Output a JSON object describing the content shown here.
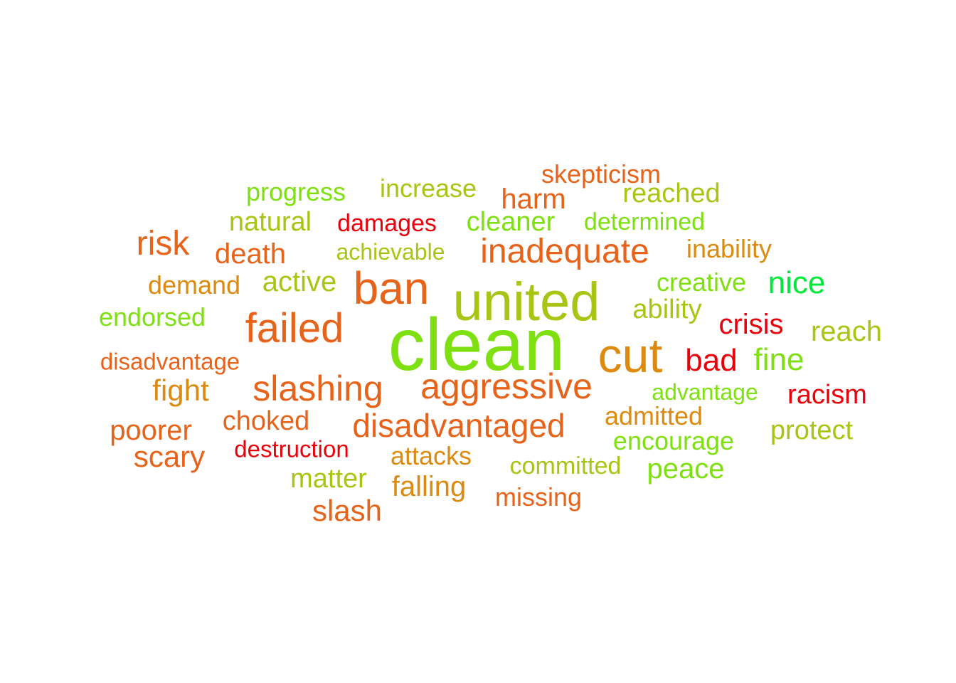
{
  "palette": {
    "red": "#e8000b",
    "red_orange": "#e53d12",
    "orange": "#e8631a",
    "dark_orange": "#dc8a10",
    "olive": "#aac414",
    "yellow_green": "#98c80e",
    "lime": "#7ee010",
    "green": "#00e83a"
  },
  "words": [
    {
      "text": "clean",
      "color": "#7ee010"
    },
    {
      "text": "united",
      "color": "#aac414"
    },
    {
      "text": "ban",
      "color": "#e8631a"
    },
    {
      "text": "cut",
      "color": "#dc8a10"
    },
    {
      "text": "failed",
      "color": "#e8631a"
    },
    {
      "text": "slashing",
      "color": "#e8631a"
    },
    {
      "text": "aggressive",
      "color": "#e8631a"
    },
    {
      "text": "inadequate",
      "color": "#e8631a"
    },
    {
      "text": "disadvantaged",
      "color": "#e8631a"
    },
    {
      "text": "risk",
      "color": "#e8631a"
    },
    {
      "text": "death",
      "color": "#e8631a"
    },
    {
      "text": "harm",
      "color": "#e8631a"
    },
    {
      "text": "nice",
      "color": "#00e83a"
    },
    {
      "text": "crisis",
      "color": "#e8000b"
    },
    {
      "text": "bad",
      "color": "#e8000b"
    },
    {
      "text": "fine",
      "color": "#7ee010"
    },
    {
      "text": "reach",
      "color": "#aac414"
    },
    {
      "text": "racism",
      "color": "#e8000b"
    },
    {
      "text": "fight",
      "color": "#dc8a10"
    },
    {
      "text": "poorer",
      "color": "#e8631a"
    },
    {
      "text": "scary",
      "color": "#e8631a"
    },
    {
      "text": "choked",
      "color": "#e8631a"
    },
    {
      "text": "slash",
      "color": "#e8631a"
    },
    {
      "text": "peace",
      "color": "#7ee010"
    },
    {
      "text": "protect",
      "color": "#aac414"
    },
    {
      "text": "matter",
      "color": "#aac414"
    },
    {
      "text": "falling",
      "color": "#dc8a10"
    },
    {
      "text": "missing",
      "color": "#e8631a"
    },
    {
      "text": "attacks",
      "color": "#dc8a10"
    },
    {
      "text": "admitted",
      "color": "#dc8a10"
    },
    {
      "text": "natural",
      "color": "#aac414"
    },
    {
      "text": "active",
      "color": "#aac414"
    },
    {
      "text": "demand",
      "color": "#dc8a10"
    },
    {
      "text": "endorsed",
      "color": "#7ee010"
    },
    {
      "text": "disadvantage",
      "color": "#e8631a"
    },
    {
      "text": "progress",
      "color": "#7ee010"
    },
    {
      "text": "increase",
      "color": "#aac414"
    },
    {
      "text": "skepticism",
      "color": "#e8631a"
    },
    {
      "text": "reached",
      "color": "#aac414"
    },
    {
      "text": "damages",
      "color": "#e8000b"
    },
    {
      "text": "cleaner",
      "color": "#7ee010"
    },
    {
      "text": "determined",
      "color": "#7ee010"
    },
    {
      "text": "achievable",
      "color": "#aac414"
    },
    {
      "text": "inability",
      "color": "#dc8a10"
    },
    {
      "text": "creative",
      "color": "#7ee010"
    },
    {
      "text": "ability",
      "color": "#aac414"
    },
    {
      "text": "advantage",
      "color": "#7ee010"
    },
    {
      "text": "encourage",
      "color": "#7ee010"
    },
    {
      "text": "committed",
      "color": "#aac414"
    },
    {
      "text": "destruction",
      "color": "#e8000b"
    }
  ]
}
